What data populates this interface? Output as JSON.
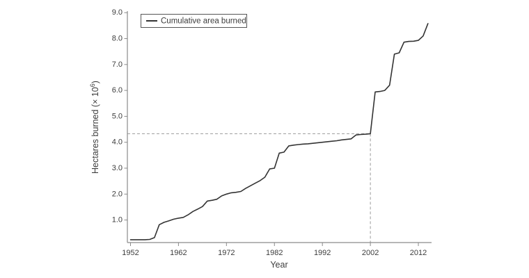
{
  "figure": {
    "background": "#ffffff"
  },
  "chart_data": {
    "type": "line",
    "title": "",
    "xlabel": "Year",
    "ylabel": "Hectares burned (× 10⁶)",
    "ylabel_parts": {
      "pre": "Hectares burned (× 10",
      "sup": "6",
      "post": ")"
    },
    "legend": {
      "position": "top-left-inside",
      "border": true,
      "entries": [
        {
          "label": "Cumulative area burned",
          "swatch": "line"
        }
      ]
    },
    "xlim": [
      1951.35,
      2014.75
    ],
    "ylim": [
      0.13,
      9.06
    ],
    "xticks": [
      1952,
      1962,
      1972,
      1982,
      1992,
      2002,
      2012
    ],
    "yticks": [
      "1.0",
      "2.0",
      "3.0",
      "4.0",
      "5.0",
      "6.0",
      "7.0",
      "8.0",
      "9.0"
    ],
    "grid": false,
    "series": [
      {
        "name": "Cumulative area burned",
        "x": [
          1952,
          1953,
          1954,
          1955,
          1956,
          1957,
          1958,
          1959,
          1960,
          1961,
          1962,
          1963,
          1964,
          1965,
          1966,
          1967,
          1968,
          1969,
          1970,
          1971,
          1972,
          1973,
          1974,
          1975,
          1976,
          1977,
          1978,
          1979,
          1980,
          1981,
          1982,
          1983,
          1984,
          1985,
          1986,
          1987,
          1988,
          1989,
          1990,
          1991,
          1992,
          1993,
          1994,
          1995,
          1996,
          1997,
          1998,
          1999,
          2000,
          2001,
          2002,
          2003,
          2004,
          2005,
          2006,
          2007,
          2008,
          2009,
          2010,
          2011,
          2012,
          2013,
          2014
        ],
        "y": [
          0.24,
          0.24,
          0.24,
          0.24,
          0.25,
          0.32,
          0.82,
          0.91,
          0.97,
          1.03,
          1.07,
          1.1,
          1.2,
          1.33,
          1.42,
          1.52,
          1.73,
          1.76,
          1.8,
          1.93,
          2.0,
          2.05,
          2.07,
          2.1,
          2.22,
          2.32,
          2.42,
          2.52,
          2.65,
          2.97,
          3.0,
          3.58,
          3.62,
          3.86,
          3.89,
          3.91,
          3.93,
          3.94,
          3.96,
          3.98,
          4.0,
          4.02,
          4.04,
          4.06,
          4.09,
          4.11,
          4.13,
          4.28,
          4.3,
          4.31,
          4.33,
          5.94,
          5.96,
          6.0,
          6.2,
          7.4,
          7.45,
          7.86,
          7.89,
          7.9,
          7.93,
          8.1,
          8.58
        ]
      }
    ],
    "reference_lines": {
      "style": "dashed",
      "vertical_year": 2002,
      "horizontal_value": 4.33,
      "note": "dashed lines meet the curve at year 2002, ≈4.3 million ha"
    },
    "colors": {
      "line": "#333333",
      "axis": "#8a8a8a",
      "dashed": "#9b9b9b",
      "text": "#3c3c3c",
      "legend_border": "#555555",
      "background": "#ffffff"
    }
  }
}
